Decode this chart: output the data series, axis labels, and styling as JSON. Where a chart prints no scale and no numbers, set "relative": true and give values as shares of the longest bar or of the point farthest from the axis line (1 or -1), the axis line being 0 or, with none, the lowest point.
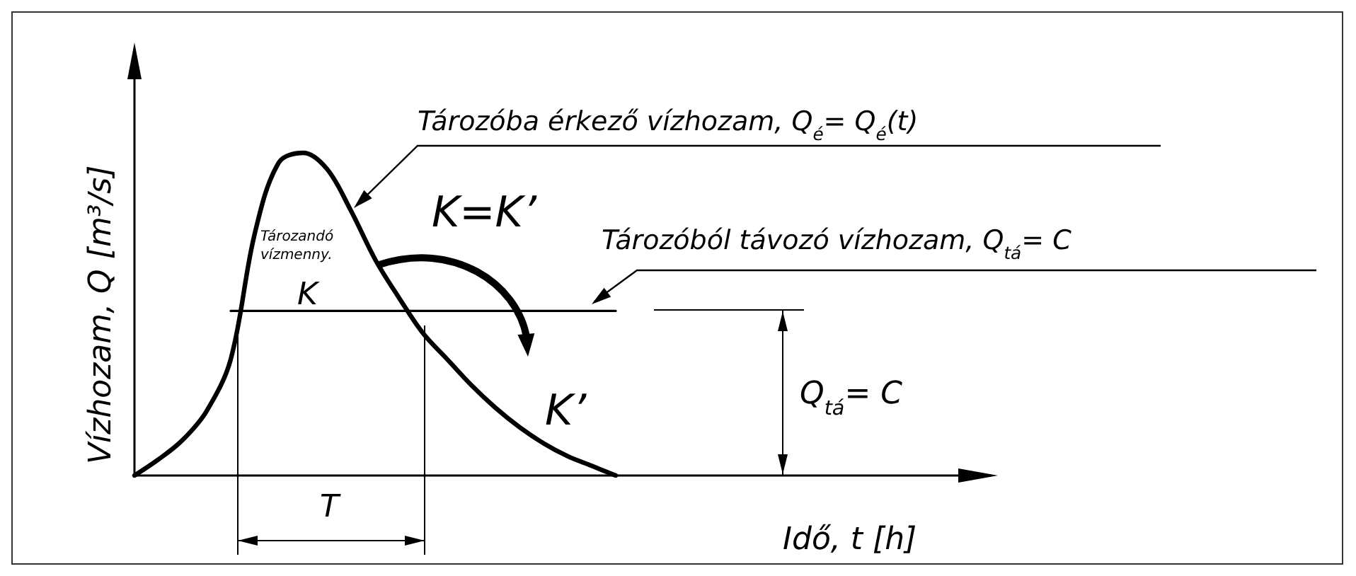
{
  "chart_data": {
    "type": "line",
    "relative": true,
    "xlabel": "Idő, t [h]",
    "ylabel": "Vízhozam, Q [m³/s]",
    "categories": [
      null,
      null,
      null,
      null,
      null,
      null,
      null,
      null,
      null,
      null,
      null,
      null,
      null,
      null,
      null,
      null,
      null,
      null,
      null,
      null,
      null,
      null,
      null,
      null,
      null,
      null,
      null,
      null,
      null,
      null,
      null,
      null,
      null,
      null,
      null,
      null
    ],
    "series": [
      {
        "color": "#000000",
        "values": [
          0,
          0.05,
          0.11,
          0.2,
          0.36,
          0.75,
          0.97,
          1,
          0.95,
          0.82,
          0.67,
          0.55,
          0.44,
          0.36,
          0.28,
          0.21,
          0.15,
          0.1,
          0.06,
          0.03,
          0,
          null,
          null,
          null,
          null,
          null,
          null,
          null,
          null,
          null,
          null,
          null,
          null,
          null,
          null,
          null
        ]
      },
      {
        "color": "#000000",
        "values": [
          null,
          null,
          null,
          null,
          0.51,
          0.51,
          0.51,
          0.51,
          0.51,
          0.51,
          0.51,
          0.51,
          0.51,
          0.51,
          0.51,
          0.51,
          0.51,
          0.51,
          0.51,
          0.51,
          0.51,
          null,
          null,
          null,
          null,
          null,
          null,
          null,
          null,
          null,
          null,
          null,
          null,
          null,
          null,
          null
        ]
      }
    ],
    "annotations": [
      "Tározóba érkező vízhozam, Q$_{é}$= Q$_{é}$(t)",
      "K=K’",
      "Tározandó",
      "vízmenny.",
      "K",
      "K’",
      "Tározóból távozó vízhozam, Q$_{tá}$= C",
      "Q$_{tá}$= C",
      "T"
    ],
    "grid": false,
    "marker": "none",
    "line_style": "solid"
  }
}
